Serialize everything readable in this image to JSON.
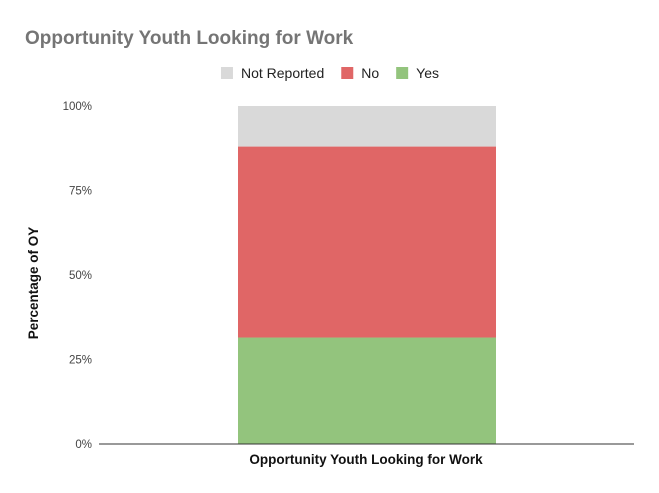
{
  "chart_data": {
    "type": "bar",
    "stacked": "percent",
    "title": "Opportunity Youth Looking for Work",
    "xlabel": "Opportunity Youth Looking for Work",
    "ylabel": "Percentage of OY",
    "categories": [
      ""
    ],
    "series": [
      {
        "name": "Yes",
        "values": [
          31.5
        ],
        "color": "#93c47d"
      },
      {
        "name": "No",
        "values": [
          56.5
        ],
        "color": "#e06666"
      },
      {
        "name": "Not Reported",
        "values": [
          12
        ],
        "color": "#d9d9d9"
      }
    ],
    "legend_order": [
      "Not Reported",
      "No",
      "Yes"
    ],
    "legend_position": "top",
    "ylim": [
      0,
      100
    ],
    "yticks": [
      "0%",
      "25%",
      "50%",
      "75%",
      "100%"
    ],
    "grid": false
  }
}
